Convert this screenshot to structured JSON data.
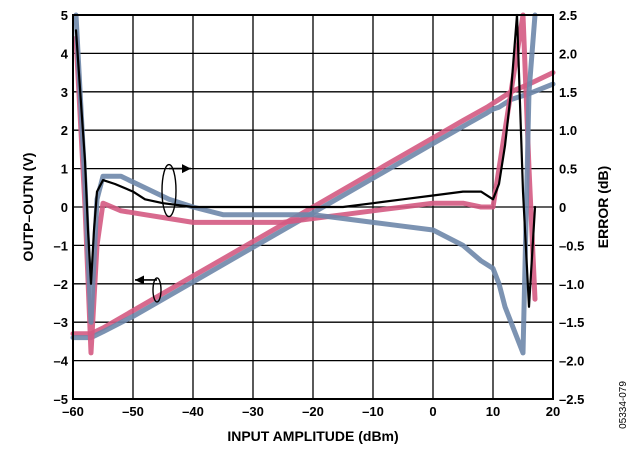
{
  "chart_data": {
    "type": "line",
    "xlabel": "INPUT AMPLITUDE (dBm)",
    "ylabel_left": "OUTP–OUTN (V)",
    "ylabel_right": "ERROR (dB)",
    "figure_id": "05334-079",
    "xlim": [
      -60,
      20
    ],
    "ylim_left": [
      -5,
      5
    ],
    "ylim_right": [
      -2.5,
      2.5
    ],
    "x_ticks": [
      -60,
      -50,
      -40,
      -30,
      -20,
      -10,
      0,
      10,
      20
    ],
    "x_tick_labels": [
      "–60",
      "–50",
      "–40",
      "–30",
      "–20",
      "–10",
      "0",
      "10",
      "20"
    ],
    "y_left_ticks": [
      -5,
      -4,
      -3,
      -2,
      -1,
      0,
      1,
      2,
      3,
      4,
      5
    ],
    "y_left_tick_labels": [
      "–5",
      "–4",
      "–3",
      "–2",
      "–1",
      "0",
      "1",
      "2",
      "3",
      "4",
      "5"
    ],
    "y_right_ticks": [
      -2.5,
      -2.0,
      -1.5,
      -1.0,
      -0.5,
      0,
      0.5,
      1.0,
      1.5,
      2.0,
      2.5
    ],
    "y_right_tick_labels": [
      "–2.5",
      "–2.0",
      "–1.5",
      "–1.0",
      "–0.5",
      "0",
      "0.5",
      "1.0",
      "1.5",
      "2.0",
      "2.5"
    ],
    "grid": true,
    "colors": {
      "pink": "#d45a82",
      "blue": "#6e87aa",
      "black": "#000000"
    },
    "series": [
      {
        "axis": "left",
        "color": "pink",
        "x": [
          -60,
          -57,
          -55,
          -50,
          -40,
          -30,
          -20,
          -10,
          0,
          5,
          9,
          10,
          11,
          13,
          16,
          20
        ],
        "y": [
          -3.3,
          -3.3,
          -3.15,
          -2.7,
          -1.8,
          -0.9,
          0.0,
          0.9,
          1.8,
          2.25,
          2.6,
          2.7,
          2.8,
          3.0,
          3.2,
          3.5
        ]
      },
      {
        "axis": "left",
        "color": "blue",
        "x": [
          -60,
          -57,
          -55,
          -50,
          -40,
          -30,
          -20,
          -10,
          0,
          5,
          9,
          10,
          11,
          13,
          16,
          20
        ],
        "y": [
          -3.4,
          -3.4,
          -3.25,
          -2.85,
          -1.95,
          -1.05,
          -0.15,
          0.75,
          1.65,
          2.1,
          2.45,
          2.55,
          2.6,
          2.8,
          2.95,
          3.2
        ]
      },
      {
        "axis": "right",
        "color": "pink",
        "x": [
          -59.5,
          -58,
          -57,
          -56,
          -55,
          -52,
          -48,
          -44,
          -40,
          -35,
          -30,
          -25,
          -20,
          -15,
          -10,
          -5,
          0,
          5,
          8,
          10,
          11,
          12,
          13,
          14,
          15,
          16,
          17
        ],
        "y": [
          2.2,
          0.0,
          -1.9,
          -0.5,
          0.05,
          -0.05,
          -0.1,
          -0.15,
          -0.2,
          -0.2,
          -0.2,
          -0.2,
          -0.15,
          -0.1,
          -0.05,
          0.0,
          0.05,
          0.05,
          0.0,
          0.0,
          0.5,
          1.0,
          1.5,
          2.0,
          2.5,
          0.5,
          -1.2
        ]
      },
      {
        "axis": "right",
        "color": "blue",
        "x": [
          -59.5,
          -58,
          -57,
          -56,
          -55,
          -52,
          -48,
          -44,
          -40,
          -35,
          -30,
          -25,
          -20,
          -15,
          -10,
          -5,
          0,
          5,
          8,
          10,
          11,
          12,
          13,
          14,
          15,
          16,
          17
        ],
        "y": [
          2.5,
          0.3,
          -1.5,
          0.1,
          0.4,
          0.4,
          0.25,
          0.1,
          0.0,
          -0.1,
          -0.1,
          -0.1,
          -0.1,
          -0.15,
          -0.2,
          -0.25,
          -0.3,
          -0.5,
          -0.7,
          -0.8,
          -1.0,
          -1.3,
          -1.5,
          -1.7,
          -1.9,
          1.5,
          2.5
        ]
      },
      {
        "axis": "right",
        "color": "black",
        "x": [
          -59.5,
          -58,
          -57.5,
          -57,
          -56.5,
          -56,
          -55,
          -53,
          -50,
          -48,
          -45,
          -40,
          -35,
          -30,
          -25,
          -20,
          -15,
          -10,
          -5,
          0,
          5,
          8,
          10,
          11,
          12,
          13,
          14,
          15,
          16,
          17
        ],
        "y": [
          2.3,
          0.6,
          -0.3,
          -1.0,
          -0.3,
          0.2,
          0.35,
          0.3,
          0.2,
          0.1,
          0.05,
          0.0,
          0.0,
          0.0,
          0.0,
          0.0,
          0.0,
          0.05,
          0.1,
          0.15,
          0.2,
          0.2,
          0.1,
          0.3,
          0.8,
          1.5,
          2.5,
          0.2,
          -1.3,
          0.0
        ]
      }
    ],
    "annotations": [
      {
        "type": "arrow",
        "direction": "right",
        "target_axis": "right",
        "x": -44,
        "y": 0.5
      },
      {
        "type": "arrow",
        "direction": "left",
        "target_axis": "left",
        "x": -46,
        "y": -1.9
      }
    ]
  }
}
